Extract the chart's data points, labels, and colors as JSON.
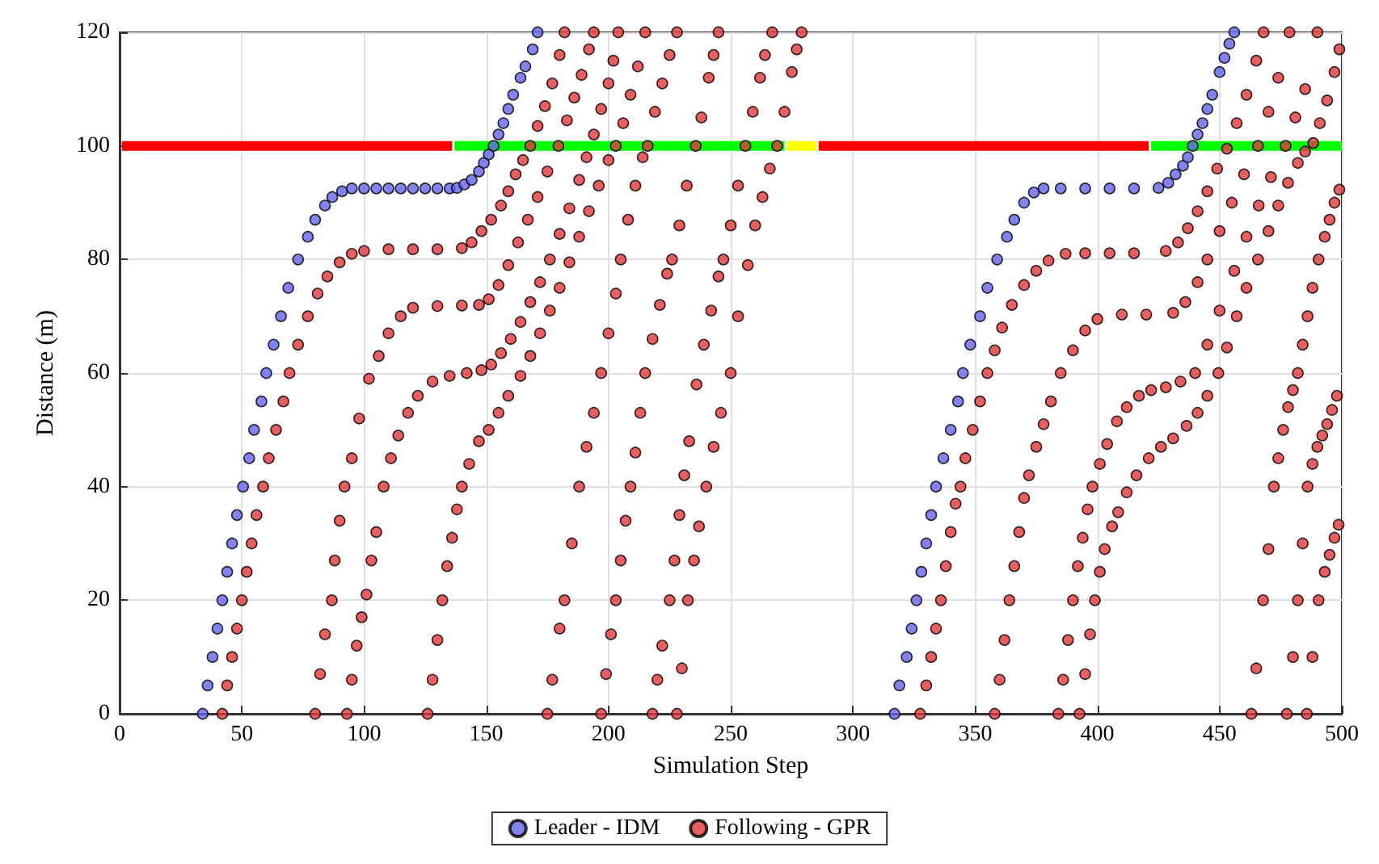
{
  "chart_data": {
    "type": "scatter",
    "xlabel": "Simulation Step",
    "ylabel": "Distance (m)",
    "xlim": [
      0,
      500
    ],
    "xticks": [
      0,
      50,
      100,
      150,
      200,
      250,
      300,
      350,
      400,
      450,
      500
    ],
    "ylim": [
      0,
      120
    ],
    "yticks": [
      0,
      20,
      40,
      60,
      80,
      100,
      120
    ],
    "grid": true,
    "legend": "bottom",
    "series": [
      {
        "type": "line",
        "marker": "none",
        "color": "#ff0000",
        "x": [
          1,
          136
        ],
        "values": [
          100,
          100
        ]
      },
      {
        "type": "line",
        "marker": "none",
        "color": "#00ff00",
        "x": [
          137,
          272
        ],
        "values": [
          100,
          100
        ]
      },
      {
        "type": "line",
        "marker": "none",
        "color": "#ffff00",
        "x": [
          273,
          285
        ],
        "values": [
          100,
          100
        ]
      },
      {
        "type": "line",
        "marker": "none",
        "color": "#ff0000",
        "x": [
          286,
          421
        ],
        "values": [
          100,
          100
        ]
      },
      {
        "type": "line",
        "marker": "none",
        "color": "#00ff00",
        "x": [
          422,
          500
        ],
        "values": [
          100,
          100
        ]
      },
      {
        "name": "Leader - IDM",
        "marker": "circle",
        "color": "#6363ec",
        "x": [
          34,
          36,
          38,
          40,
          42,
          44,
          46,
          48,
          50.5,
          53,
          55,
          58,
          60,
          63,
          66,
          69,
          73,
          77,
          80,
          84,
          87,
          91,
          95,
          100,
          105,
          110,
          115,
          120,
          125,
          130,
          135,
          138,
          141,
          144,
          147,
          149,
          151,
          153,
          155,
          157,
          159,
          161,
          164,
          166,
          169,
          171,
          317,
          319,
          322,
          324,
          326,
          328,
          330,
          332,
          334,
          337,
          340,
          343,
          345,
          348,
          352,
          355,
          359,
          363,
          366,
          370,
          374,
          378,
          385,
          395,
          405,
          415,
          425,
          429,
          432,
          435,
          437,
          439,
          441,
          443,
          445,
          447,
          450,
          452,
          454,
          456
        ],
        "values": [
          0,
          5,
          10,
          15,
          20,
          25,
          30,
          35,
          40,
          45,
          50,
          55,
          60,
          65,
          70,
          75,
          80,
          84,
          87,
          89.5,
          91,
          92,
          92.5,
          92.5,
          92.5,
          92.5,
          92.5,
          92.5,
          92.5,
          92.5,
          92.5,
          92.6,
          93.2,
          94,
          95.5,
          97,
          98.5,
          100,
          102,
          104,
          106.5,
          109,
          112,
          114,
          117,
          120,
          0,
          5,
          10,
          15,
          20,
          25,
          30,
          35,
          40,
          45,
          50,
          55,
          60,
          65,
          70,
          75,
          80,
          84,
          87,
          90,
          91.8,
          92.5,
          92.5,
          92.5,
          92.5,
          92.5,
          92.6,
          93.5,
          95,
          96.5,
          98,
          100,
          102,
          104,
          106.5,
          109,
          113,
          115.5,
          118,
          120
        ]
      },
      {
        "name": "Following - GPR",
        "marker": "circle",
        "color": "#e33636",
        "x": [
          42,
          44,
          46,
          48,
          50,
          52,
          54,
          56,
          58.7,
          61,
          64,
          67,
          69.5,
          73,
          77,
          81,
          85,
          90,
          95,
          100,
          110,
          120,
          130,
          140,
          144,
          148,
          152,
          156,
          159,
          162,
          165,
          168,
          171,
          174,
          177,
          180,
          182,
          80,
          82,
          84,
          86.8,
          88,
          90,
          92,
          95,
          98,
          102,
          106,
          110,
          115,
          120,
          130,
          140,
          147,
          151,
          155,
          159,
          163,
          167,
          171,
          175,
          179.5,
          183,
          186,
          189,
          192,
          194,
          93,
          95,
          97,
          99,
          101,
          103,
          105,
          108,
          111,
          114,
          118,
          122,
          128,
          135,
          142,
          148,
          152,
          156,
          160,
          164,
          168,
          172,
          176,
          180,
          184,
          188,
          191,
          194,
          197,
          200,
          202,
          204,
          126,
          128,
          130,
          132,
          134,
          136,
          138,
          140,
          143,
          147,
          151,
          155,
          159,
          164,
          168,
          172,
          176,
          180,
          184,
          188,
          192,
          196,
          200,
          203,
          206,
          209,
          212,
          215,
          175,
          177,
          180,
          182,
          185,
          188,
          191,
          194,
          197,
          200,
          203,
          205,
          208,
          211,
          214,
          216,
          219,
          222,
          225,
          228,
          197,
          199,
          201,
          203,
          205,
          207,
          209,
          211,
          213,
          215,
          218,
          221,
          224,
          226,
          229,
          232,
          235.7,
          238,
          241,
          243,
          245,
          218,
          220,
          222,
          225,
          227,
          229,
          231,
          233,
          236,
          239,
          242,
          245,
          247,
          250,
          253,
          256,
          259,
          262,
          264,
          267,
          228,
          230,
          232.5,
          235,
          237,
          240,
          243,
          246,
          250,
          253,
          257,
          260,
          263,
          266,
          269,
          272,
          275,
          277,
          279,
          327.5,
          330,
          332,
          334,
          336,
          338,
          340,
          342,
          344,
          346,
          349,
          352,
          355,
          358,
          361,
          365,
          370,
          375,
          380,
          387,
          395,
          405,
          415,
          428,
          433,
          437,
          441,
          445,
          449,
          453,
          457,
          461,
          465,
          468,
          358,
          360,
          362,
          364,
          366,
          368,
          370,
          372,
          375,
          378,
          381,
          385,
          390,
          395,
          400,
          410,
          420,
          431,
          436,
          441,
          445,
          450,
          455,
          460,
          465.7,
          470,
          474,
          478.6,
          384,
          386,
          388,
          390,
          392,
          394,
          396,
          398,
          401,
          404,
          408,
          412,
          417,
          422,
          428,
          434,
          440,
          445,
          450,
          456,
          461,
          466,
          471,
          477,
          481,
          485,
          490,
          392.7,
          395,
          397,
          399,
          401,
          403,
          406,
          408.5,
          412,
          416,
          421,
          426,
          431,
          436.5,
          441,
          445,
          449.5,
          453,
          457,
          461,
          465.7,
          470,
          474,
          478,
          482,
          485,
          488.3,
          491,
          494,
          497,
          499,
          463,
          465,
          467.8,
          470,
          472.2,
          474,
          476,
          478,
          480,
          482,
          484,
          486,
          488,
          490.5,
          493,
          495,
          497,
          499,
          477.5,
          480,
          482,
          484,
          486,
          488,
          490,
          492,
          494,
          496,
          498,
          485.7,
          488,
          490.5,
          493,
          495,
          497,
          498.7
        ],
        "values": [
          0,
          5,
          10,
          15,
          20,
          25,
          30,
          35,
          40,
          45,
          50,
          55,
          60,
          65,
          70,
          74,
          77,
          79.5,
          81,
          81.5,
          81.8,
          81.8,
          81.8,
          82,
          83,
          85,
          87,
          89.5,
          92,
          95,
          97.5,
          100,
          103.5,
          107,
          111,
          116,
          120,
          0,
          7,
          14,
          20,
          27,
          34,
          40,
          45,
          52,
          59,
          63,
          67,
          70,
          71.5,
          71.8,
          71.9,
          72,
          73,
          75.5,
          79,
          83,
          87,
          91,
          95.5,
          100,
          104.5,
          108.5,
          112.5,
          117,
          120,
          0,
          6,
          12,
          17,
          21,
          27,
          32,
          40,
          45,
          49,
          53,
          56,
          58.5,
          59.5,
          60,
          60.5,
          61.5,
          63.5,
          66,
          69,
          72.5,
          76,
          80,
          84.5,
          89,
          94,
          98,
          102,
          106.5,
          111,
          115,
          120,
          0,
          6,
          13,
          20,
          26,
          31,
          36,
          40,
          44,
          48,
          50,
          53,
          56,
          59.5,
          63,
          67,
          71,
          75,
          79.5,
          84,
          88.5,
          93,
          97.5,
          100,
          104,
          109,
          114,
          120,
          0,
          6,
          15,
          20,
          30,
          40,
          47,
          53,
          60,
          67,
          74,
          80,
          87,
          93,
          98,
          100,
          106,
          111,
          116,
          120,
          0,
          7,
          14,
          20,
          27,
          34,
          40,
          46,
          53,
          60,
          66,
          72,
          77.5,
          80,
          86,
          93,
          100,
          105,
          112,
          116,
          120,
          0,
          6,
          12,
          20,
          27,
          35,
          42,
          48,
          58,
          65,
          71,
          77,
          80,
          86,
          93,
          100,
          106,
          112,
          116,
          120,
          0,
          8,
          20,
          27,
          33,
          40,
          47,
          53,
          60,
          70,
          79,
          86,
          91,
          96,
          100,
          106,
          113,
          117,
          120,
          0,
          5,
          10,
          15,
          20,
          26,
          32,
          37,
          40,
          45,
          50,
          55,
          60,
          64,
          68,
          72,
          75.5,
          78,
          79.8,
          81,
          81.1,
          81.1,
          81.1,
          81.5,
          83,
          85.5,
          88.5,
          92,
          96,
          99.5,
          104,
          109,
          115,
          120,
          0,
          6,
          13,
          20,
          26,
          32,
          38,
          42,
          47,
          51,
          55,
          60,
          64,
          67.5,
          69.5,
          70.3,
          70.3,
          70.6,
          72.5,
          76,
          80,
          85,
          90,
          95,
          100,
          106,
          112,
          120,
          0,
          6,
          13,
          20,
          26,
          31,
          36,
          40,
          44,
          47.5,
          51.5,
          54,
          56,
          57,
          57.5,
          58.5,
          60,
          65,
          71,
          78,
          84,
          89.5,
          94.5,
          100,
          105,
          110,
          120,
          0,
          7,
          14,
          20,
          25,
          29,
          33,
          35.5,
          39,
          42,
          45,
          47,
          48.5,
          50.7,
          53,
          56,
          60,
          64.5,
          70,
          75,
          80,
          85,
          89.5,
          93.5,
          97,
          99,
          100.5,
          104,
          108,
          113,
          117,
          0,
          8,
          20,
          29,
          40,
          45,
          50,
          54,
          57,
          60,
          65,
          70,
          75,
          80,
          84,
          87,
          90,
          92.3,
          0,
          10,
          20,
          30,
          40,
          44,
          47,
          49,
          51,
          53.5,
          56,
          0,
          10,
          20,
          25,
          28,
          31,
          33.3
        ]
      }
    ]
  }
}
